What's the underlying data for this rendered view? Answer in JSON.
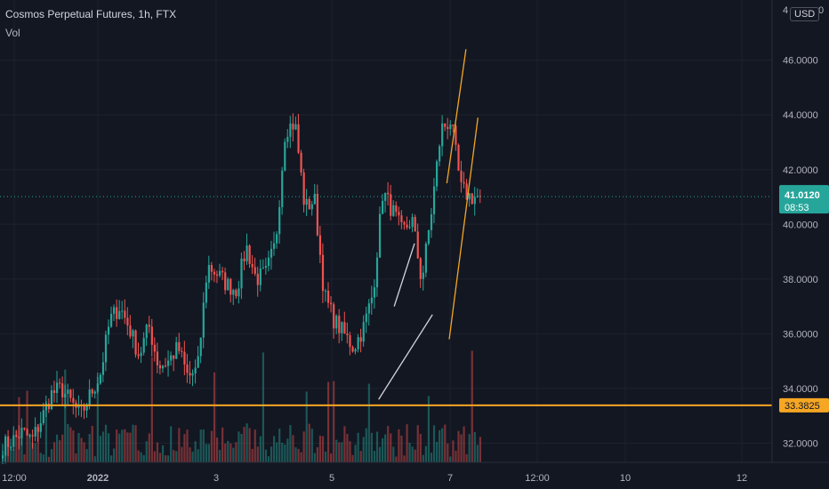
{
  "header": {
    "title": "Cosmos Perpetual Futures, 1h, FTX",
    "volume_label": "Vol",
    "currency": "USD"
  },
  "colors": {
    "up": "#26a69a",
    "down": "#ef5350",
    "h_line": "#f5a623",
    "channel_left": "#d1d4dc",
    "channel_right": "#f5a623"
  },
  "chart_data": {
    "type": "candlestick",
    "ylim": [
      31.3,
      48.2
    ],
    "y_ticks": [
      "32.0000",
      "34.0000",
      "36.0000",
      "38.0000",
      "40.0000",
      "42.0000",
      "44.0000",
      "46.0000"
    ],
    "y_top_partial": [
      "4",
      "0"
    ],
    "x_ticks": [
      "12:00",
      "2022",
      "3",
      "5",
      "7",
      "12:00",
      "10",
      "12"
    ],
    "last_price": "41.0120",
    "countdown": "08:53",
    "horizontal_level": "33.3825",
    "price_path": [
      [
        31.9,
        32.1
      ],
      [
        32.4,
        32.1
      ],
      [
        32.9,
        33.8
      ],
      [
        34.0,
        33.5
      ],
      [
        33.0,
        33.8
      ],
      [
        34.5,
        36.5
      ],
      [
        37.0,
        36.2
      ],
      [
        35.2,
        36.3
      ],
      [
        34.8,
        35.0
      ],
      [
        35.5,
        34.4
      ],
      [
        34.7,
        38.5
      ],
      [
        38.2,
        37.8
      ],
      [
        37.6,
        39.2
      ],
      [
        38.0,
        38.2
      ],
      [
        39.3,
        43.5
      ],
      [
        43.7,
        40.6
      ],
      [
        40.9,
        37.4
      ],
      [
        36.5,
        36.0
      ],
      [
        35.5,
        36.2
      ],
      [
        37.5,
        41.2
      ],
      [
        40.5,
        39.7
      ],
      [
        40.2,
        37.9
      ],
      [
        40.5,
        43.5
      ],
      [
        43.8,
        41.3
      ],
      [
        41.0,
        41.0
      ]
    ],
    "channel_left": {
      "lower": [
        [
          31.5,
          33.6
        ],
        [
          36.0,
          36.7
        ]
      ],
      "upper": [
        [
          32.8,
          37.0
        ],
        [
          34.5,
          39.3
        ]
      ]
    },
    "channel_right": {
      "lower": [
        [
          37.4,
          35.8
        ],
        [
          39.8,
          43.9
        ]
      ],
      "upper": [
        [
          37.2,
          41.5
        ],
        [
          38.8,
          46.4
        ]
      ]
    }
  }
}
